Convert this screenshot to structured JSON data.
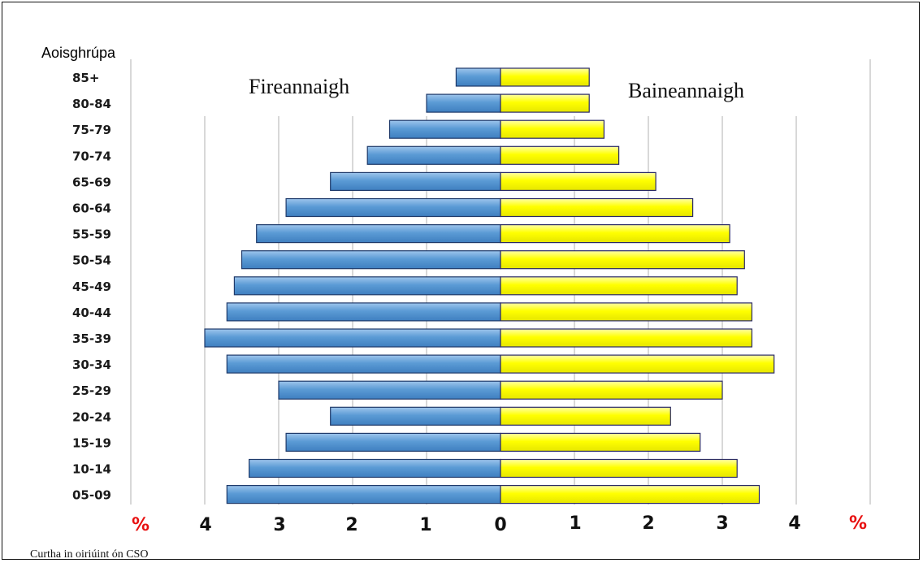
{
  "chart_data": {
    "type": "bar",
    "orientation": "horizontal",
    "subtype": "population-pyramid",
    "ylabel": "Aoisghrúpa",
    "categories": [
      "85+",
      "80-84",
      "75-79",
      "70-74",
      "65-69",
      "60-64",
      "55-59",
      "50-54",
      "45-49",
      "40-44",
      "35-39",
      "30-34",
      "25-29",
      "20-24",
      "15-19",
      "10-14",
      "05-09"
    ],
    "series": [
      {
        "name": "Fireannaigh",
        "color": "#5b9bd5",
        "side": "left",
        "values": [
          0.6,
          1.0,
          1.5,
          1.8,
          2.3,
          2.9,
          3.3,
          3.5,
          3.6,
          3.7,
          4.0,
          3.7,
          3.0,
          2.3,
          2.9,
          3.4,
          3.7
        ]
      },
      {
        "name": "Baineannaigh",
        "color": "#ffff00",
        "side": "right",
        "values": [
          1.2,
          1.2,
          1.4,
          1.6,
          2.1,
          2.6,
          3.1,
          3.3,
          3.2,
          3.4,
          3.4,
          3.7,
          3.0,
          2.3,
          2.7,
          3.2,
          3.5
        ]
      }
    ],
    "xlim": [
      -5,
      5
    ],
    "x_tick_labels_left": [
      "%",
      "4",
      "3",
      "2",
      "1"
    ],
    "x_tick_label_center": "0",
    "x_tick_labels_right": [
      "1",
      "2",
      "3",
      "4",
      "%"
    ],
    "grid": true
  },
  "source_note": "Curtha in oiriúint ón CSO"
}
